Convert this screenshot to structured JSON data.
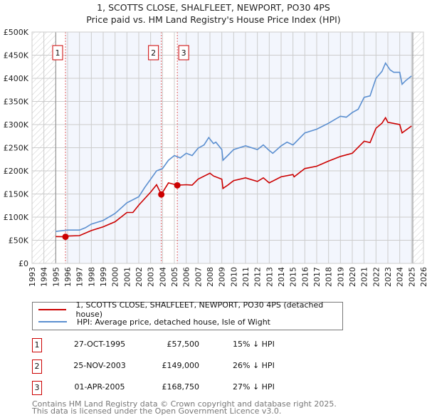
{
  "chart_data": {
    "type": "line",
    "title": "1, SCOTTS CLOSE, SHALFLEET, NEWPORT, PO30 4PS",
    "subtitle": "Price paid vs. HM Land Registry's House Price Index (HPI)",
    "xlim": [
      1993,
      2026
    ],
    "ylim": [
      0,
      500000
    ],
    "x_ticks": [
      "1993",
      "1994",
      "1995",
      "1996",
      "1997",
      "1998",
      "1999",
      "2000",
      "2001",
      "2002",
      "2003",
      "2004",
      "2005",
      "2006",
      "2007",
      "2008",
      "2009",
      "2010",
      "2011",
      "2012",
      "2013",
      "2014",
      "2015",
      "2016",
      "2017",
      "2018",
      "2019",
      "2020",
      "2021",
      "2022",
      "2023",
      "2024",
      "2025",
      "2026"
    ],
    "y_ticks": [
      {
        "v": 0,
        "label": "£0"
      },
      {
        "v": 50000,
        "label": "£50K"
      },
      {
        "v": 100000,
        "label": "£100K"
      },
      {
        "v": 150000,
        "label": "£150K"
      },
      {
        "v": 200000,
        "label": "£200K"
      },
      {
        "v": 250000,
        "label": "£250K"
      },
      {
        "v": 300000,
        "label": "£300K"
      },
      {
        "v": 350000,
        "label": "£350K"
      },
      {
        "v": 400000,
        "label": "£400K"
      },
      {
        "v": 450000,
        "label": "£450K"
      },
      {
        "v": 500000,
        "label": "£500K"
      }
    ],
    "grid": true,
    "hatched_ranges": [
      [
        1993,
        1995
      ],
      [
        2025.1,
        2026
      ]
    ],
    "series": [
      {
        "name": "1, SCOTTS CLOSE, SHALFLEET, NEWPORT, PO30 4PS (detached house)",
        "color": "#cc0000",
        "points": [
          [
            1995,
            58
          ],
          [
            1995.8,
            57.5
          ],
          [
            1996,
            59
          ],
          [
            1997,
            60
          ],
          [
            1998,
            71
          ],
          [
            1999,
            79
          ],
          [
            2000,
            90
          ],
          [
            2001,
            110
          ],
          [
            2001.5,
            110
          ],
          [
            2002,
            126
          ],
          [
            2003,
            154
          ],
          [
            2003.5,
            170
          ],
          [
            2003.9,
            149
          ],
          [
            2004.5,
            174
          ],
          [
            2005.25,
            169
          ],
          [
            2006,
            170
          ],
          [
            2006.5,
            169
          ],
          [
            2007,
            182
          ],
          [
            2008,
            195
          ],
          [
            2008.3,
            189
          ],
          [
            2009,
            182
          ],
          [
            2009.1,
            162
          ],
          [
            2009.5,
            169
          ],
          [
            2010,
            179
          ],
          [
            2011,
            185
          ],
          [
            2012,
            177
          ],
          [
            2012.5,
            185
          ],
          [
            2013,
            174
          ],
          [
            2014,
            187
          ],
          [
            2015,
            192
          ],
          [
            2015.1,
            187
          ],
          [
            2016,
            205
          ],
          [
            2017,
            210
          ],
          [
            2018,
            221
          ],
          [
            2019,
            231
          ],
          [
            2020,
            238
          ],
          [
            2021,
            264
          ],
          [
            2021.5,
            261
          ],
          [
            2022,
            292
          ],
          [
            2022.5,
            303
          ],
          [
            2022.8,
            315
          ],
          [
            2023,
            305
          ],
          [
            2024,
            300
          ],
          [
            2024.2,
            282
          ],
          [
            2025,
            297
          ]
        ]
      },
      {
        "name": "HPI: Average price, detached house, Isle of Wight",
        "color": "#5b8fd0",
        "points": [
          [
            1995,
            69
          ],
          [
            1996,
            72
          ],
          [
            1997,
            72
          ],
          [
            1997.5,
            77
          ],
          [
            1998,
            85
          ],
          [
            1999,
            93
          ],
          [
            2000,
            108
          ],
          [
            2001,
            131
          ],
          [
            2002,
            144
          ],
          [
            2002.5,
            164
          ],
          [
            2003,
            182
          ],
          [
            2003.5,
            200
          ],
          [
            2004,
            205
          ],
          [
            2004.5,
            223
          ],
          [
            2005,
            233
          ],
          [
            2005.5,
            228
          ],
          [
            2006,
            238
          ],
          [
            2006.5,
            233
          ],
          [
            2007,
            249
          ],
          [
            2007.5,
            256
          ],
          [
            2007.9,
            272
          ],
          [
            2008.3,
            259
          ],
          [
            2008.5,
            262
          ],
          [
            2009,
            246
          ],
          [
            2009.1,
            223
          ],
          [
            2009.5,
            233
          ],
          [
            2010,
            246
          ],
          [
            2011,
            254
          ],
          [
            2012,
            246
          ],
          [
            2012.5,
            256
          ],
          [
            2013,
            244
          ],
          [
            2013.3,
            238
          ],
          [
            2014,
            254
          ],
          [
            2014.5,
            262
          ],
          [
            2015,
            256
          ],
          [
            2016,
            282
          ],
          [
            2017,
            290
          ],
          [
            2018,
            303
          ],
          [
            2019,
            318
          ],
          [
            2019.5,
            316
          ],
          [
            2020,
            326
          ],
          [
            2020.5,
            333
          ],
          [
            2021,
            359
          ],
          [
            2021.5,
            362
          ],
          [
            2022,
            400
          ],
          [
            2022.5,
            415
          ],
          [
            2022.8,
            433
          ],
          [
            2023.2,
            418
          ],
          [
            2023.5,
            413
          ],
          [
            2024,
            413
          ],
          [
            2024.2,
            387
          ],
          [
            2024.5,
            395
          ],
          [
            2025,
            405
          ]
        ]
      }
    ],
    "sales": [
      {
        "label": "1",
        "x": 1995.82,
        "price": 57500
      },
      {
        "label": "2",
        "x": 2003.9,
        "price": 149000
      },
      {
        "label": "3",
        "x": 2005.25,
        "price": 168750
      }
    ]
  },
  "legend": {
    "red": "1, SCOTTS CLOSE, SHALFLEET, NEWPORT, PO30 4PS (detached house)",
    "blue": "HPI: Average price, detached house, Isle of Wight"
  },
  "table": [
    {
      "num": "1",
      "date": "27-OCT-1995",
      "price": "£57,500",
      "hpi": "15% ↓ HPI"
    },
    {
      "num": "2",
      "date": "25-NOV-2003",
      "price": "£149,000",
      "hpi": "26% ↓ HPI"
    },
    {
      "num": "3",
      "date": "01-APR-2005",
      "price": "£168,750",
      "hpi": "27% ↓ HPI"
    }
  ],
  "footer": {
    "line1": "Contains HM Land Registry data © Crown copyright and database right 2025.",
    "line2": "This data is licensed under the Open Government Licence v3.0."
  }
}
